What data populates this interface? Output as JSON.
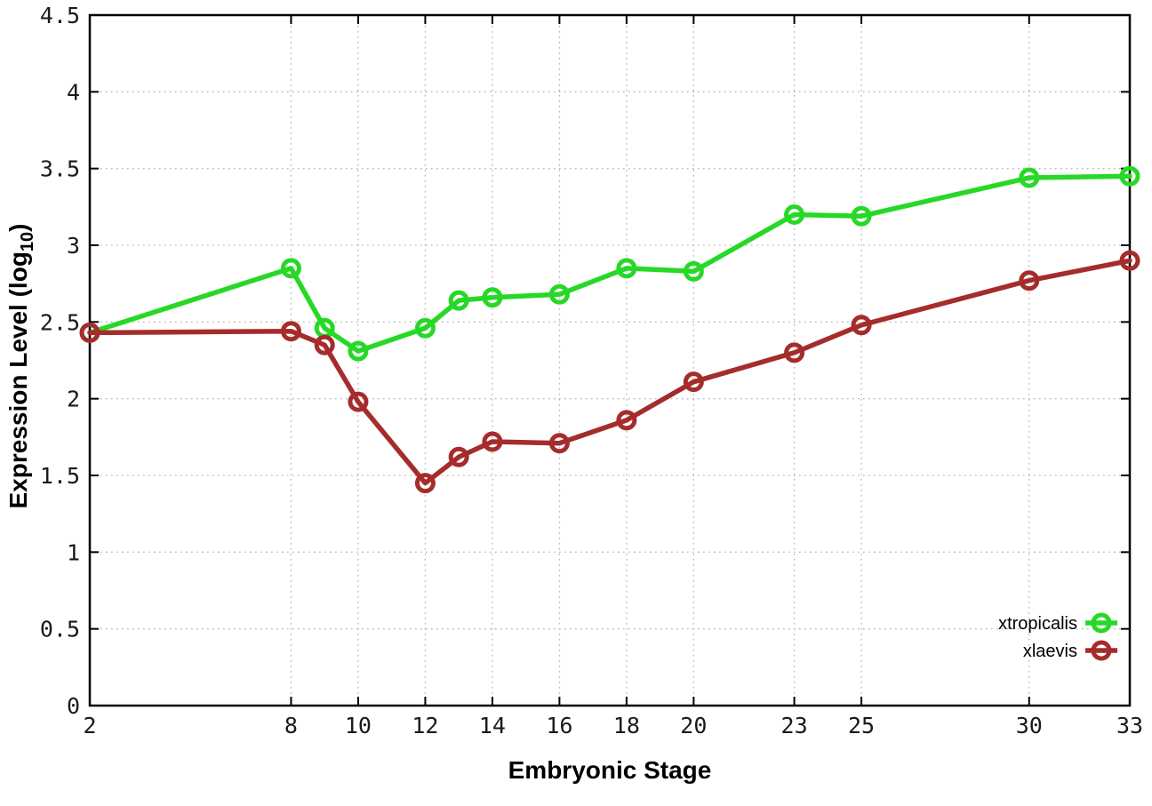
{
  "chart_data": {
    "type": "line",
    "title": "",
    "xlabel": "Embryonic Stage",
    "ylabel": {
      "text": "Expression Level (log",
      "sub": "10",
      "suffix": ")"
    },
    "x": [
      2,
      8,
      9,
      10,
      12,
      13,
      14,
      16,
      18,
      20,
      23,
      25,
      30,
      33
    ],
    "series": [
      {
        "name": "xtropicalis",
        "color": "#27d827",
        "values": [
          2.43,
          2.85,
          2.46,
          2.31,
          2.46,
          2.64,
          2.66,
          2.68,
          2.85,
          2.83,
          3.2,
          3.19,
          3.44,
          3.45
        ]
      },
      {
        "name": "xlaevis",
        "color": "#a62c2c",
        "values": [
          2.43,
          2.44,
          2.35,
          1.98,
          1.45,
          1.62,
          1.72,
          1.71,
          1.86,
          2.11,
          2.3,
          2.48,
          2.77,
          2.9
        ]
      }
    ],
    "xlim": [
      2,
      33
    ],
    "ylim": [
      0,
      4.5
    ],
    "xticks": [
      2,
      8,
      10,
      12,
      14,
      16,
      18,
      20,
      23,
      25,
      30,
      33
    ],
    "xtick_labels": [
      "2",
      "8",
      "10",
      "12",
      "14",
      "16",
      "18",
      "20",
      "23",
      "25",
      "30",
      "33"
    ],
    "yticks": [
      0,
      0.5,
      1,
      1.5,
      2,
      2.5,
      3,
      3.5,
      4,
      4.5
    ],
    "ytick_labels": [
      "0",
      "0.5",
      "1",
      "1.5",
      "2",
      "2.5",
      "3",
      "3.5",
      "4",
      "4.5"
    ],
    "grid": true,
    "legend_position": "bottom-right",
    "marker": "open-circle",
    "colors": {
      "grid": "#b0b0b0",
      "border": "#000000",
      "text": "#000000"
    }
  }
}
